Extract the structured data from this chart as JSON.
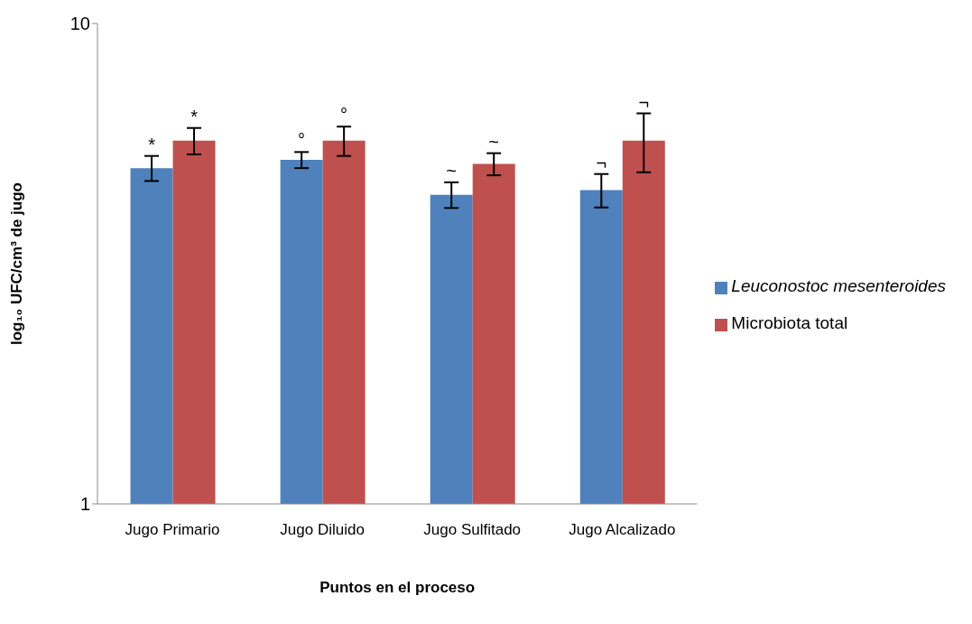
{
  "chart_data": {
    "type": "bar",
    "xlabel": "Puntos en el proceso",
    "ylabel": "log₁₀ UFC/cm³ de jugo",
    "categories": [
      "Jugo Primario",
      "Jugo Diluido",
      "Jugo Sulfitado",
      "Jugo Alcalizado"
    ],
    "series": [
      {
        "name": "Leuconostoc mesenteroides",
        "color": "#4f81bd",
        "values": [
          5.0,
          5.2,
          4.4,
          4.5
        ],
        "errors": [
          0.3,
          0.2,
          0.27,
          0.36
        ],
        "value_labels": [
          "*",
          "°",
          "~",
          "¬"
        ]
      },
      {
        "name": "Microbiota total",
        "color": "#c0504d",
        "values": [
          5.7,
          5.7,
          5.1,
          5.7
        ],
        "errors": [
          0.36,
          0.4,
          0.27,
          0.8
        ],
        "value_labels": [
          "*",
          "°",
          "~",
          "¬"
        ]
      }
    ],
    "log": true,
    "ylim": [
      1,
      10
    ],
    "yticks": [
      1,
      10
    ],
    "grid": false,
    "legend": "right"
  }
}
